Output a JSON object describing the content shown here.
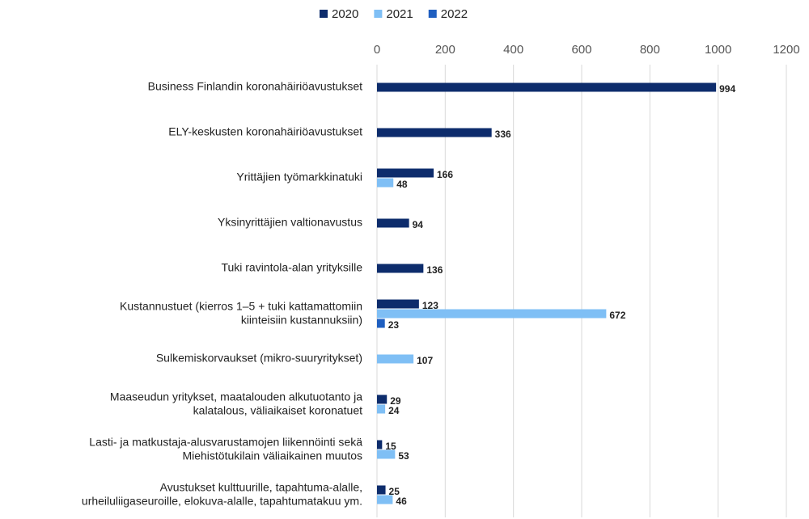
{
  "chart_data": {
    "type": "bar",
    "orientation": "horizontal",
    "categories": [
      "Business Finlandin koronahäiriöavustukset",
      "ELY-keskusten koronahäiriöavustukset",
      "Yrittäjien työmarkkinatuki",
      "Yksinyrittäjien valtionavustus",
      "Tuki ravintola-alan yrityksille",
      "Kustannustuet (kierros 1–5 + tuki kattamattomiin\nkiinteisiin kustannuksiin)",
      "Sulkemiskorvaukset (mikro-suuryritykset)",
      "Maaseudun yritykset, maatalouden alkutuotanto ja\nkalatalous, väliaikaiset koronatuet",
      "Lasti- ja matkustaja-alusvarustamojen liikennöinti sekä\nMiehistötukilain väliaikainen muutos",
      "Avustukset kulttuurille, tapahtuma-alalle,\nurheiluliigaseuroille, elokuva-alalle, tapahtumatakuu ym."
    ],
    "series": [
      {
        "name": "2020",
        "color": "#0d2c6c",
        "values": [
          994,
          336,
          166,
          94,
          136,
          123,
          null,
          29,
          15,
          25
        ]
      },
      {
        "name": "2021",
        "color": "#7fbff5",
        "values": [
          null,
          null,
          48,
          null,
          null,
          672,
          107,
          24,
          53,
          46
        ]
      },
      {
        "name": "2022",
        "color": "#1f5fc0",
        "values": [
          null,
          null,
          null,
          null,
          null,
          23,
          null,
          null,
          null,
          null
        ]
      }
    ],
    "xlim": [
      0,
      1200
    ],
    "xticks": [
      0,
      200,
      400,
      600,
      800,
      1000,
      1200
    ],
    "grid": true,
    "legend": "top"
  }
}
